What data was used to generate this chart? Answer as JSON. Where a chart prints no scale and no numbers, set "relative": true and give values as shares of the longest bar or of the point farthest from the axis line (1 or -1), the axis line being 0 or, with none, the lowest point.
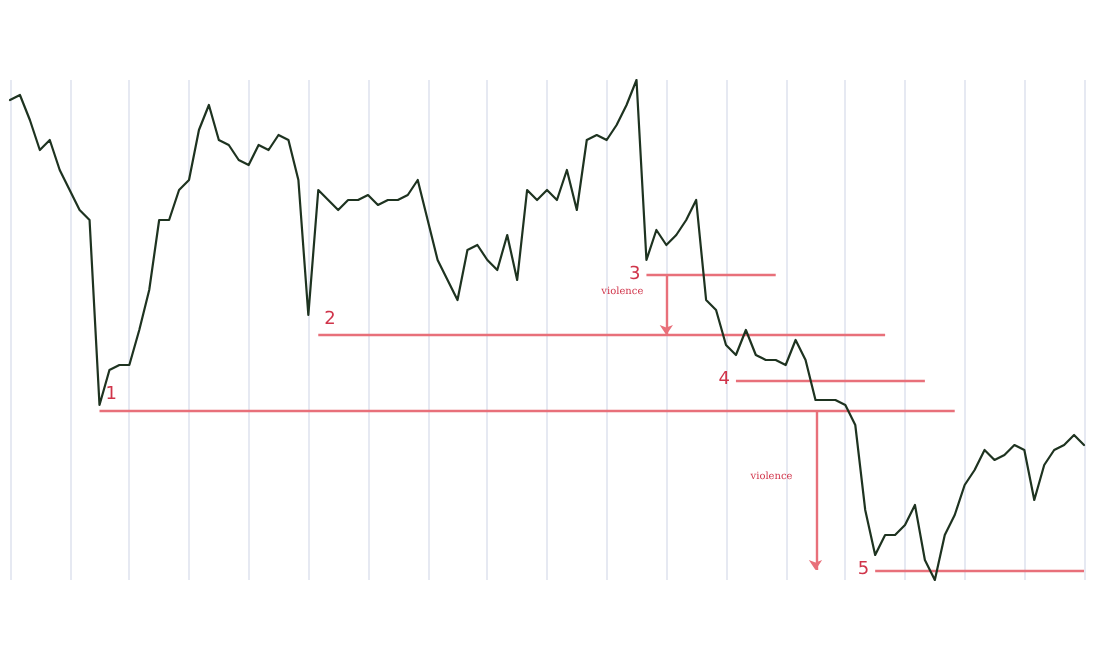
{
  "chart_data": {
    "type": "line",
    "relative": true,
    "grid": "x",
    "marker": "none",
    "line_style": "solid",
    "categories": [
      null,
      null,
      null,
      null,
      null,
      null,
      null,
      null,
      null,
      null,
      null,
      null,
      null,
      null,
      null,
      null,
      null,
      null,
      null,
      null,
      null,
      null,
      null,
      null,
      null,
      null,
      null,
      null,
      null,
      null,
      null,
      null,
      null,
      null,
      null,
      null,
      null,
      null,
      null,
      null,
      null,
      null,
      null,
      null,
      null,
      null,
      null,
      null,
      null,
      null,
      null,
      null,
      null,
      null,
      null,
      null,
      null,
      null,
      null,
      null,
      null,
      null,
      null,
      null,
      null,
      null,
      null,
      null,
      null,
      null,
      null,
      null,
      null,
      null,
      null,
      null,
      null,
      null,
      null,
      null,
      null,
      null,
      null,
      null,
      null,
      null,
      null,
      null,
      null,
      null,
      null,
      null,
      null,
      null,
      null,
      null,
      null,
      null,
      null,
      null,
      null,
      null,
      null,
      null,
      null,
      null,
      null,
      null,
      null
    ],
    "series": [
      {
        "color": "#1e3320",
        "values": [
          0.96,
          0.97,
          0.92,
          0.86,
          0.88,
          0.82,
          0.78,
          0.74,
          0.72,
          0.35,
          0.42,
          0.43,
          0.43,
          0.5,
          0.58,
          0.72,
          0.72,
          0.78,
          0.8,
          0.9,
          0.95,
          0.88,
          0.87,
          0.84,
          0.83,
          0.87,
          0.86,
          0.89,
          0.88,
          0.8,
          0.53,
          0.78,
          0.76,
          0.74,
          0.76,
          0.76,
          0.77,
          0.75,
          0.76,
          0.76,
          0.77,
          0.8,
          0.72,
          0.64,
          0.6,
          0.56,
          0.66,
          0.67,
          0.64,
          0.62,
          0.69,
          0.6,
          0.78,
          0.76,
          0.78,
          0.76,
          0.82,
          0.74,
          0.88,
          0.89,
          0.88,
          0.91,
          0.95,
          1,
          0.64,
          0.7,
          0.67,
          0.69,
          0.72,
          0.76,
          0.56,
          0.54,
          0.47,
          0.45,
          0.5,
          0.45,
          0.44,
          0.44,
          0.43,
          0.48,
          0.44,
          0.36,
          0.36,
          0.36,
          0.35,
          0.31,
          0.14,
          0.05,
          0.09,
          0.09,
          0.11,
          0.15,
          0.04,
          0,
          0.09,
          0.13,
          0.19,
          0.22,
          0.26,
          0.24,
          0.25,
          0.27,
          0.26,
          0.16,
          0.23,
          0.26,
          0.27,
          0.29,
          0.27
        ]
      }
    ],
    "ref_lines": [
      {
        "axis": "y",
        "value": 0.34,
        "color": "#e8707a"
      },
      {
        "axis": "y",
        "value": 0.49,
        "color": "#e8707a"
      },
      {
        "axis": "y",
        "value": 0.61,
        "color": "#e8707a"
      },
      {
        "axis": "y",
        "value": 0.4,
        "color": "#e8707a"
      },
      {
        "axis": "y",
        "value": 0.02,
        "color": "#e8707a"
      }
    ],
    "annotations": [
      "1",
      "2",
      "3",
      "4",
      "5",
      "violence",
      "violence"
    ]
  }
}
